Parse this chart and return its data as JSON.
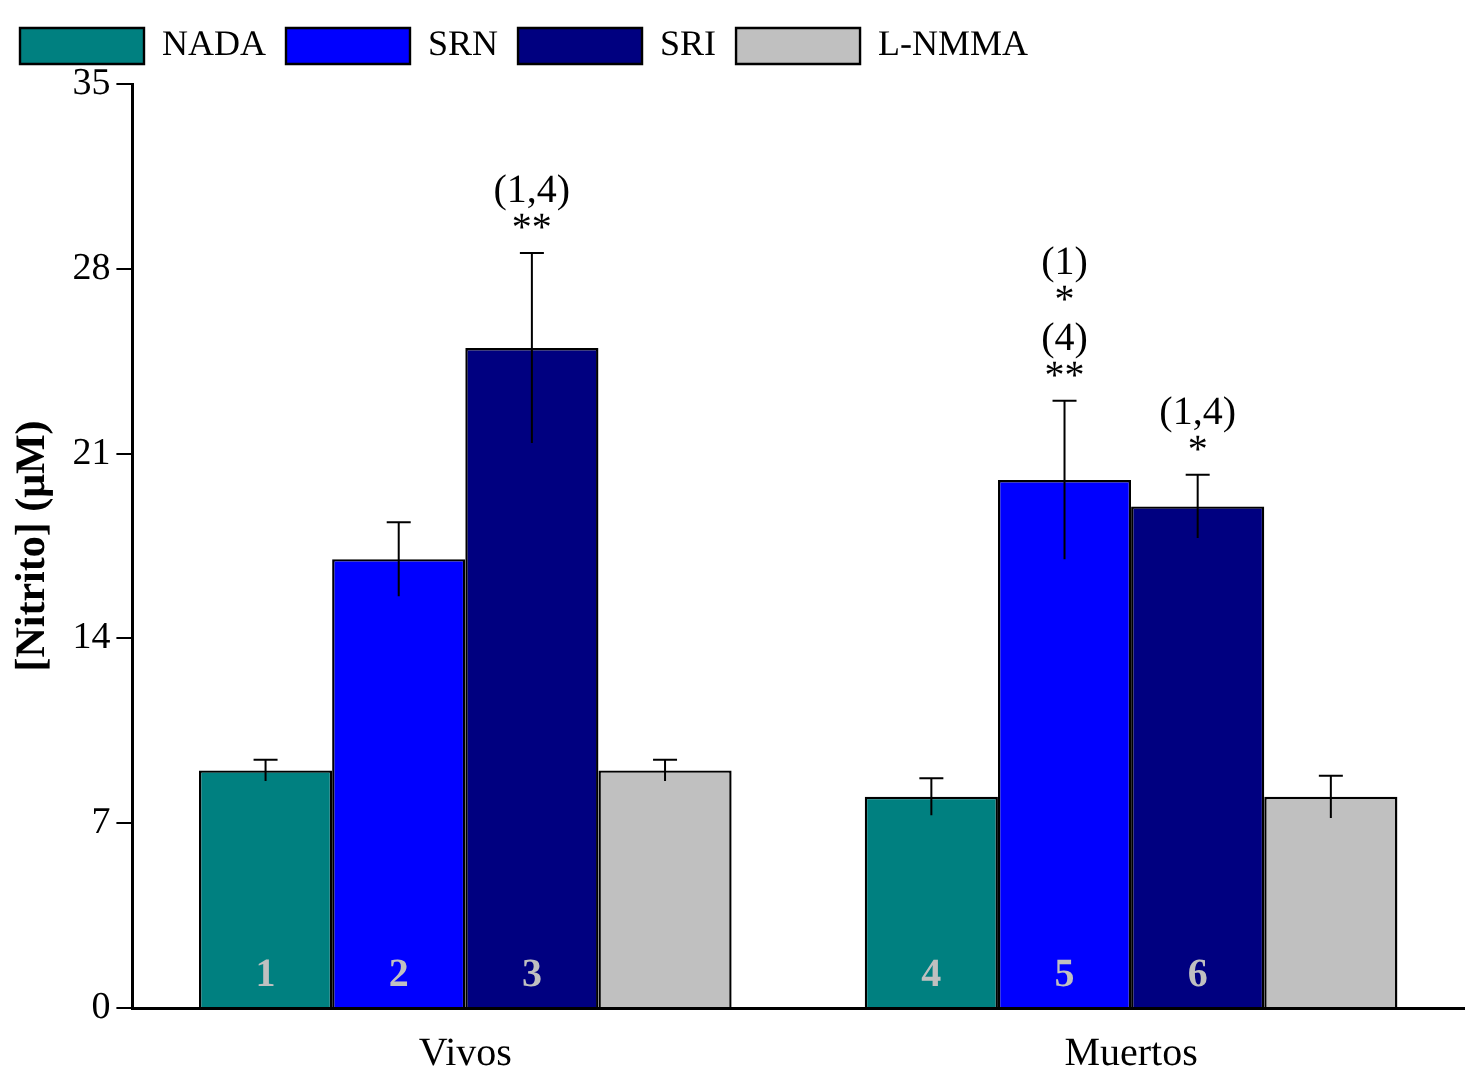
{
  "chart_data": {
    "type": "bar",
    "ylabel": "[Nitrito] (μM)",
    "categories": [
      "Vivos",
      "Muertos"
    ],
    "series": [
      {
        "name": "NADA",
        "color": "#008080",
        "values": [
          9.0,
          8.0
        ],
        "errors": [
          0.4,
          0.7
        ]
      },
      {
        "name": "SRN",
        "color": "#0000ff",
        "values": [
          17.0,
          20.0
        ],
        "errors": [
          1.4,
          3.0
        ]
      },
      {
        "name": "SRI",
        "color": "#000080",
        "values": [
          25.0,
          19.0
        ],
        "errors": [
          3.6,
          1.2
        ]
      },
      {
        "name": "L-NMMA",
        "color": "#c0c0c0",
        "values": [
          9.0,
          8.0
        ],
        "errors": [
          0.4,
          0.8
        ]
      }
    ],
    "ylim": [
      0,
      35
    ],
    "yticks": [
      0,
      7,
      14,
      21,
      28,
      35
    ],
    "grid": false,
    "legend": "top",
    "annotations": [
      "(1,4)\n**",
      "(1)\n*\n(4)\n**",
      "(1,4)\n*",
      "1",
      "2",
      "3",
      "4",
      "5",
      "6"
    ]
  }
}
